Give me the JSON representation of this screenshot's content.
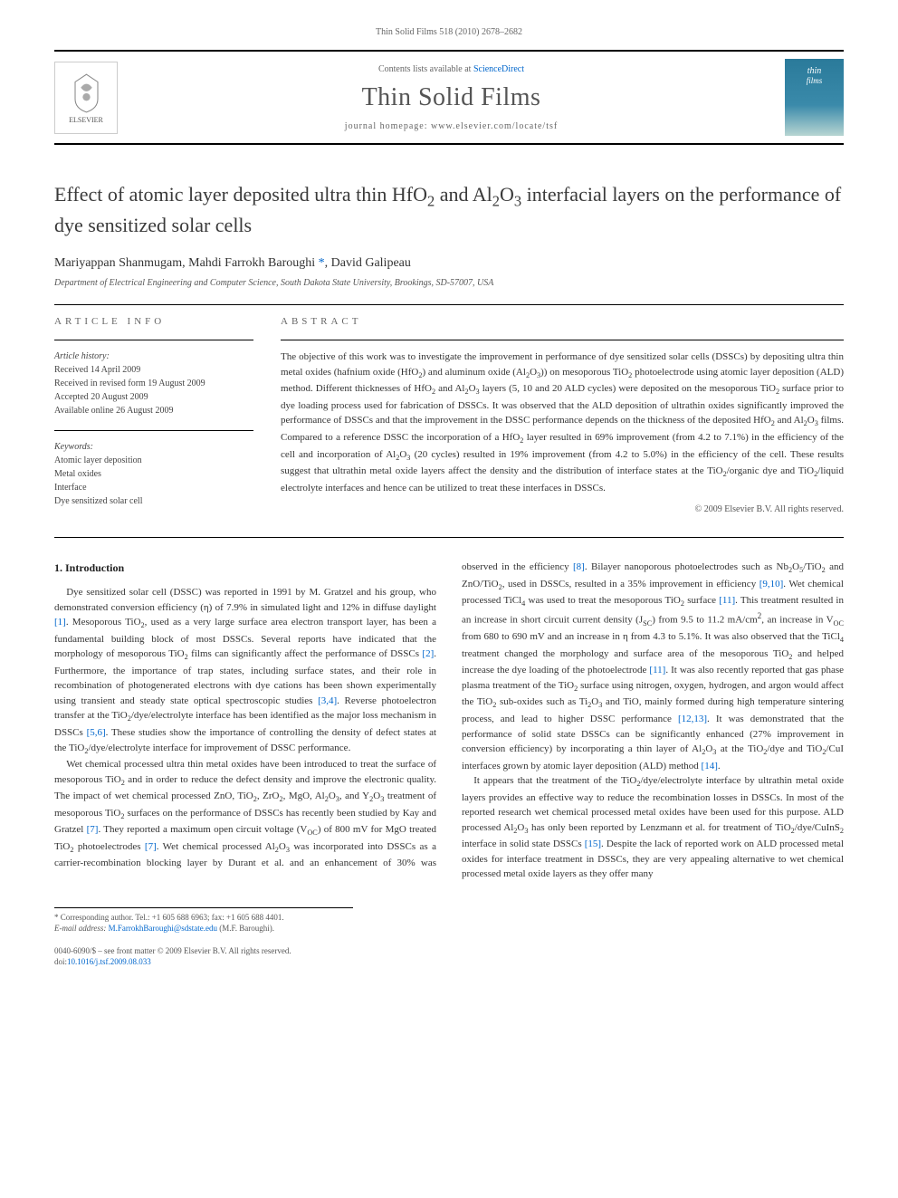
{
  "header": {
    "citation": "Thin Solid Films 518 (2010) 2678–2682",
    "contents_prefix": "Contents lists available at ",
    "contents_link": "ScienceDirect",
    "journal_title": "Thin Solid Films",
    "homepage_prefix": "journal homepage: ",
    "homepage": "www.elsevier.com/locate/tsf",
    "publisher_label": "ELSEVIER",
    "cover_text_top": "thin",
    "cover_text_bot": "films"
  },
  "article": {
    "title_html": "Effect of atomic layer deposited ultra thin HfO<sub>2</sub> and Al<sub>2</sub>O<sub>3</sub> interfacial layers on the performance of dye sensitized solar cells",
    "authors_html": "Mariyappan Shanmugam, Mahdi Farrokh Baroughi <a href='#'>*</a>, David Galipeau",
    "affiliation": "Department of Electrical Engineering and Computer Science, South Dakota State University, Brookings, SD-57007, USA"
  },
  "info": {
    "label": "article info",
    "history_hdr": "Article history:",
    "history": [
      "Received 14 April 2009",
      "Received in revised form 19 August 2009",
      "Accepted 20 August 2009",
      "Available online 26 August 2009"
    ],
    "keywords_hdr": "Keywords:",
    "keywords": [
      "Atomic layer deposition",
      "Metal oxides",
      "Interface",
      "Dye sensitized solar cell"
    ]
  },
  "abstract": {
    "label": "abstract",
    "text_html": "The objective of this work was to investigate the improvement in performance of dye sensitized solar cells (DSSCs) by depositing ultra thin metal oxides (hafnium oxide (HfO<sub>2</sub>) and aluminum oxide (Al<sub>2</sub>O<sub>3</sub>)) on mesoporous TiO<sub>2</sub> photoelectrode using atomic layer deposition (ALD) method. Different thicknesses of HfO<sub>2</sub> and Al<sub>2</sub>O<sub>3</sub> layers (5, 10 and 20 ALD cycles) were deposited on the mesoporous TiO<sub>2</sub> surface prior to dye loading process used for fabrication of DSSCs. It was observed that the ALD deposition of ultrathin oxides significantly improved the performance of DSSCs and that the improvement in the DSSC performance depends on the thickness of the deposited HfO<sub>2</sub> and Al<sub>2</sub>O<sub>3</sub> films. Compared to a reference DSSC the incorporation of a HfO<sub>2</sub> layer resulted in 69% improvement (from 4.2 to 7.1%) in the efficiency of the cell and incorporation of Al<sub>2</sub>O<sub>3</sub> (20 cycles) resulted in 19% improvement (from 4.2 to 5.0%) in the efficiency of the cell. These results suggest that ultrathin metal oxide layers affect the density and the distribution of interface states at the TiO<sub>2</sub>/organic dye and TiO<sub>2</sub>/liquid electrolyte interfaces and hence can be utilized to treat these interfaces in DSSCs.",
    "copyright": "© 2009 Elsevier B.V. All rights reserved."
  },
  "body": {
    "section_title": "1. Introduction",
    "para1_html": "Dye sensitized solar cell (DSSC) was reported in 1991 by M. Gratzel and his group, who demonstrated conversion efficiency (η) of 7.9% in simulated light and 12% in diffuse daylight <a class='ref' href='#'>[1]</a>. Mesoporous TiO<sub>2</sub>, used as a very large surface area electron transport layer, has been a fundamental building block of most DSSCs. Several reports have indicated that the morphology of mesoporous TiO<sub>2</sub> films can significantly affect the performance of DSSCs <a class='ref' href='#'>[2]</a>. Furthermore, the importance of trap states, including surface states, and their role in recombination of photogenerated electrons with dye cations has been shown experimentally using transient and steady state optical spectroscopic studies <a class='ref' href='#'>[3,4]</a>. Reverse photoelectron transfer at the TiO<sub>2</sub>/dye/electrolyte interface has been identified as the major loss mechanism in DSSCs <a class='ref' href='#'>[5,6]</a>. These studies show the importance of controlling the density of defect states at the TiO<sub>2</sub>/dye/electrolyte interface for improvement of DSSC performance.",
    "para2_html": "Wet chemical processed ultra thin metal oxides have been introduced to treat the surface of mesoporous TiO<sub>2</sub> and in order to reduce the defect density and improve the electronic quality. The impact of wet chemical processed ZnO, TiO<sub>2</sub>, ZrO<sub>2</sub>, MgO, Al<sub>2</sub>O<sub>3</sub>, and Y<sub>2</sub>O<sub>3</sub> treatment of mesoporous TiO<sub>2</sub> surfaces on the performance of DSSCs has recently been studied by Kay and Gratzel <a class='ref' href='#'>[7]</a>. They reported a maximum open circuit voltage (V<sub>OC</sub>) of 800 mV for MgO treated TiO<sub>2</sub> photoelectrodes <a class='ref' href='#'>[7]</a>. Wet chemical processed Al<sub>2</sub>O<sub>3</sub> was incorporated into DSSCs as a carrier-recombination blocking layer by Durant et al. and an enhancement of 30% was observed in the efficiency <a class='ref' href='#'>[8]</a>. Bilayer nanoporous photoelectrodes such as Nb<sub>2</sub>O<sub>5</sub>/TiO<sub>2</sub> and ZnO/TiO<sub>2</sub>, used in DSSCs, resulted in a 35% improvement in efficiency <a class='ref' href='#'>[9,10]</a>. Wet chemical processed TiCl<sub>4</sub> was used to treat the mesoporous TiO<sub>2</sub> surface <a class='ref' href='#'>[11]</a>. This treatment resulted in an increase in short circuit current density (J<sub>SC</sub>) from 9.5 to 11.2 mA/cm<sup>2</sup>, an increase in V<sub>OC</sub> from 680 to 690 mV and an increase in η from 4.3 to 5.1%. It was also observed that the TiCl<sub>4</sub> treatment changed the morphology and surface area of the mesoporous TiO<sub>2</sub> and helped increase the dye loading of the photoelectrode <a class='ref' href='#'>[11]</a>. It was also recently reported that gas phase plasma treatment of the TiO<sub>2</sub> surface using nitrogen, oxygen, hydrogen, and argon would affect the TiO<sub>2</sub> sub-oxides such as Ti<sub>2</sub>O<sub>3</sub> and TiO, mainly formed during high temperature sintering process, and lead to higher DSSC performance <a class='ref' href='#'>[12,13]</a>. It was demonstrated that the performance of solid state DSSCs can be significantly enhanced (27% improvement in conversion efficiency) by incorporating a thin layer of Al<sub>2</sub>O<sub>3</sub> at the TiO<sub>2</sub>/dye and TiO<sub>2</sub>/CuI interfaces grown by atomic layer deposition (ALD) method <a class='ref' href='#'>[14]</a>.",
    "para3_html": "It appears that the treatment of the TiO<sub>2</sub>/dye/electrolyte interface by ultrathin metal oxide layers provides an effective way to reduce the recombination losses in DSSCs. In most of the reported research wet chemical processed metal oxides have been used for this purpose. ALD processed Al<sub>2</sub>O<sub>3</sub> has only been reported by Lenzmann et al. for treatment of TiO<sub>2</sub>/dye/CuInS<sub>2</sub> interface in solid state DSSCs <a class='ref' href='#'>[15]</a>. Despite the lack of reported work on ALD processed metal oxides for interface treatment in DSSCs, they are very appealing alternative to wet chemical processed metal oxide layers as they offer many"
  },
  "footer": {
    "corr_line1": "* Corresponding author. Tel.: +1 605 688 6963; fax: +1 605 688 4401.",
    "corr_line2_prefix": "E-mail address: ",
    "corr_email": "M.FarrokhBaroughi@sdstate.edu",
    "corr_line2_suffix": " (M.F. Baroughi).",
    "issn_line": "0040-6090/$ – see front matter © 2009 Elsevier B.V. All rights reserved.",
    "doi_prefix": "doi:",
    "doi": "10.1016/j.tsf.2009.08.033"
  },
  "style": {
    "link_color": "#0066cc",
    "text_color": "#333333",
    "rule_color": "#000000",
    "body_fontsize": 11,
    "title_fontsize": 22,
    "journal_title_fontsize": 28
  }
}
